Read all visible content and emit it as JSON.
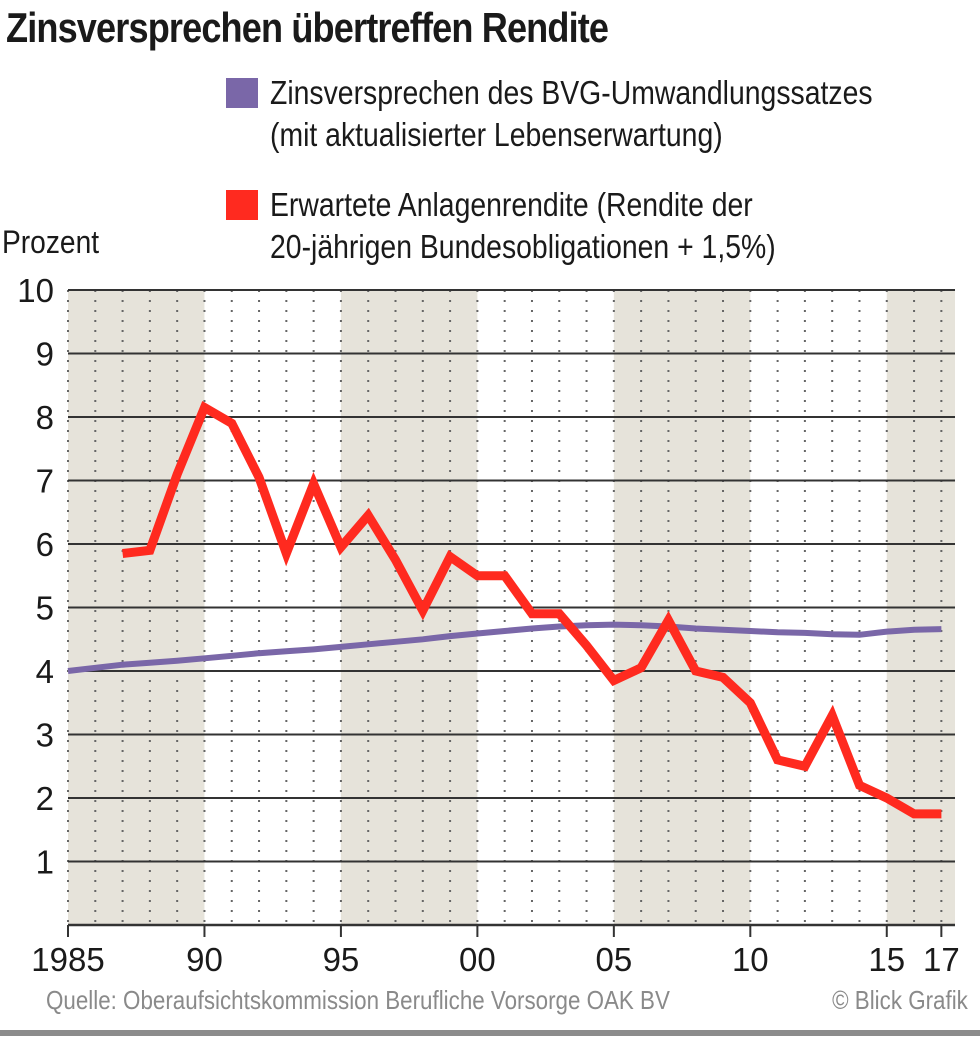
{
  "chart_data": {
    "type": "line",
    "title": "Zinsversprechen übertreffen Rendite",
    "ylabel": "Prozent",
    "xlabel": "",
    "ylim": [
      0,
      10
    ],
    "xlim": [
      1985,
      2017.5
    ],
    "yticks": [
      1,
      2,
      3,
      4,
      5,
      6,
      7,
      8,
      9,
      10
    ],
    "xticks": [
      {
        "value": 1985,
        "label": "1985"
      },
      {
        "value": 1990,
        "label": "90"
      },
      {
        "value": 1995,
        "label": "95"
      },
      {
        "value": 2000,
        "label": "00"
      },
      {
        "value": 2005,
        "label": "05"
      },
      {
        "value": 2010,
        "label": "10"
      },
      {
        "value": 2015,
        "label": "15"
      },
      {
        "value": 2017,
        "label": "17"
      }
    ],
    "shaded_bands": [
      [
        1985,
        1990
      ],
      [
        1995,
        2000
      ],
      [
        2005,
        2010
      ],
      [
        2015,
        2017.5
      ]
    ],
    "series": [
      {
        "name": "Zinsversprechen des BVG-Umwandlungssatzes (mit aktualisierter Lebenserwartung)",
        "color": "#7a67a8",
        "x": [
          1985,
          1986,
          1987,
          1988,
          1989,
          1990,
          1991,
          1992,
          1993,
          1994,
          1995,
          1996,
          1997,
          1998,
          1999,
          2000,
          2001,
          2002,
          2003,
          2004,
          2005,
          2006,
          2007,
          2008,
          2009,
          2010,
          2011,
          2012,
          2013,
          2014,
          2015,
          2016,
          2017
        ],
        "values": [
          4.0,
          4.05,
          4.1,
          4.13,
          4.16,
          4.2,
          4.24,
          4.28,
          4.31,
          4.34,
          4.38,
          4.42,
          4.46,
          4.5,
          4.55,
          4.59,
          4.63,
          4.67,
          4.7,
          4.72,
          4.73,
          4.72,
          4.7,
          4.67,
          4.65,
          4.63,
          4.61,
          4.6,
          4.58,
          4.57,
          4.62,
          4.65,
          4.66
        ]
      },
      {
        "name": "Erwartete Anlagenrendite (Rendite der 20-jährigen Bundesobligationen + 1,5%)",
        "color": "#ff2a1f",
        "x": [
          1987,
          1988,
          1989,
          1990,
          1991,
          1992,
          1993,
          1994,
          1995,
          1996,
          1997,
          1998,
          1999,
          2000,
          2001,
          2002,
          2003,
          2004,
          2005,
          2006,
          2007,
          2008,
          2009,
          2010,
          2011,
          2012,
          2013,
          2014,
          2015,
          2016,
          2017
        ],
        "values": [
          5.85,
          5.9,
          7.1,
          8.15,
          7.9,
          7.05,
          5.85,
          6.95,
          5.95,
          6.45,
          5.75,
          4.95,
          5.8,
          5.5,
          5.5,
          4.9,
          4.9,
          4.4,
          3.85,
          4.05,
          4.8,
          4.0,
          3.9,
          3.5,
          2.6,
          2.5,
          3.3,
          2.2,
          2.0,
          1.75,
          1.75
        ]
      }
    ],
    "legend": [
      {
        "line1": "Zinsversprechen des BVG-Umwandlungssatzes",
        "line2": "(mit aktualisierter Lebenserwartung)",
        "color": "#7a67a8"
      },
      {
        "line1": "Erwartete Anlagenrendite (Rendite der",
        "line2": "20-jährigen Bundesobligationen + 1,5%)",
        "color": "#ff2a1f"
      }
    ]
  },
  "source": "Quelle: Oberaufsichtskommission Berufliche Vorsorge OAK BV",
  "credit": "© Blick Grafik"
}
